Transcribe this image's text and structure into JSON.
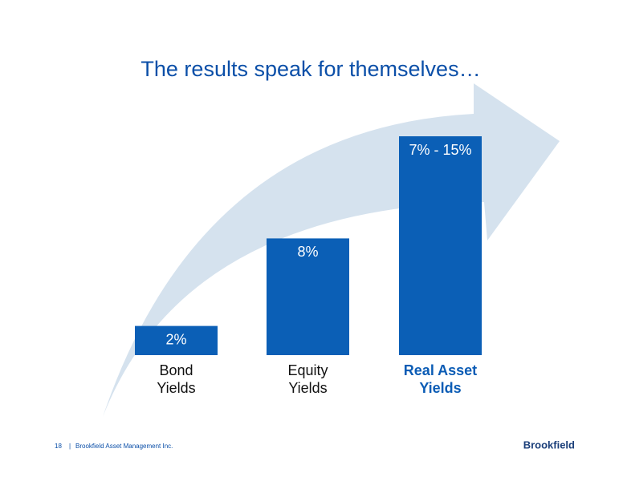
{
  "chart_data": {
    "type": "bar",
    "title": "The results speak for themselves…",
    "categories": [
      "Bond Yields",
      "Equity Yields",
      "Real Asset Yields"
    ],
    "values": [
      2,
      8,
      15
    ],
    "value_labels": [
      "2%",
      "8%",
      "7% - 15%"
    ],
    "color": "#0b5fb6",
    "highlight": 2
  },
  "footer": {
    "page": "18",
    "company": "Brookfield Asset Management Inc.",
    "logo": "Brookfield"
  }
}
